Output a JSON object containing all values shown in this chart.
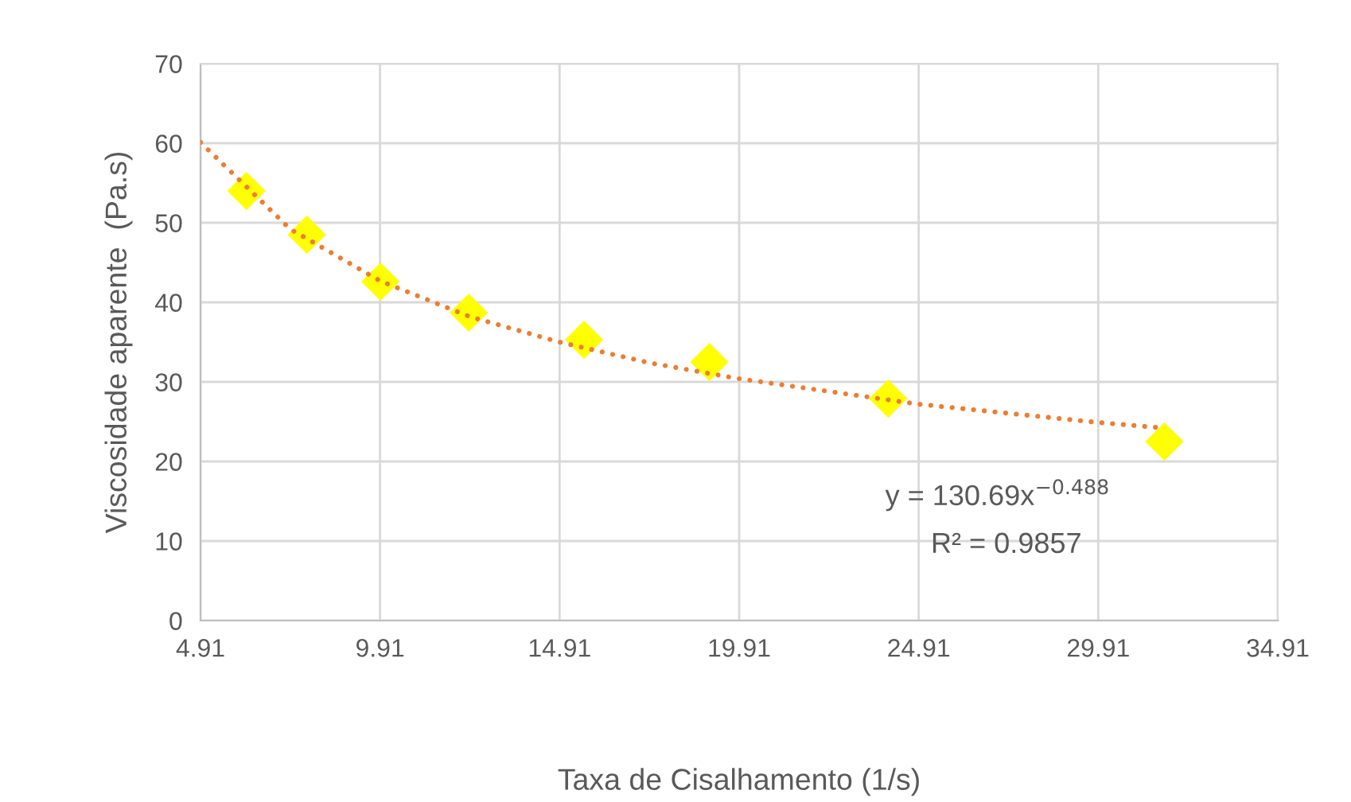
{
  "chart_data": {
    "type": "scatter",
    "xlabel": "Taxa de Cisalhamento (1/s)",
    "ylabel": "Viscosidade aparente  (Pa.s)",
    "xlim": [
      4.91,
      34.91
    ],
    "xticks": [
      4.91,
      9.91,
      14.91,
      19.91,
      24.91,
      29.91,
      34.91
    ],
    "ylim": [
      0,
      70
    ],
    "yticks": [
      0,
      10,
      20,
      30,
      40,
      50,
      60,
      70
    ],
    "grid": true,
    "annotations": [
      "y = 130.69x$^{−0.488}$",
      "R² = 0.9857"
    ],
    "series": [
      {
        "color": "#ffff00",
        "marker": "diamond",
        "x": [
          6.19,
          7.87,
          9.92,
          12.38,
          15.59,
          19.08,
          24.06,
          31.75
        ],
        "values": [
          54.0,
          48.5,
          42.6,
          38.7,
          35.3,
          32.5,
          27.9,
          22.5
        ]
      },
      {
        "type": "line",
        "color": "#ed7d31",
        "line_style": "dotted",
        "marker": "none",
        "x": [
          4.91,
          7.41,
          9.91,
          12.41,
          14.91,
          17.41,
          19.91,
          24.91,
          29.91,
          31.75
        ],
        "values": [
          60.1,
          49.2,
          42.7,
          38.2,
          35.0,
          32.4,
          30.4,
          27.2,
          24.9,
          24.2
        ]
      }
    ]
  }
}
